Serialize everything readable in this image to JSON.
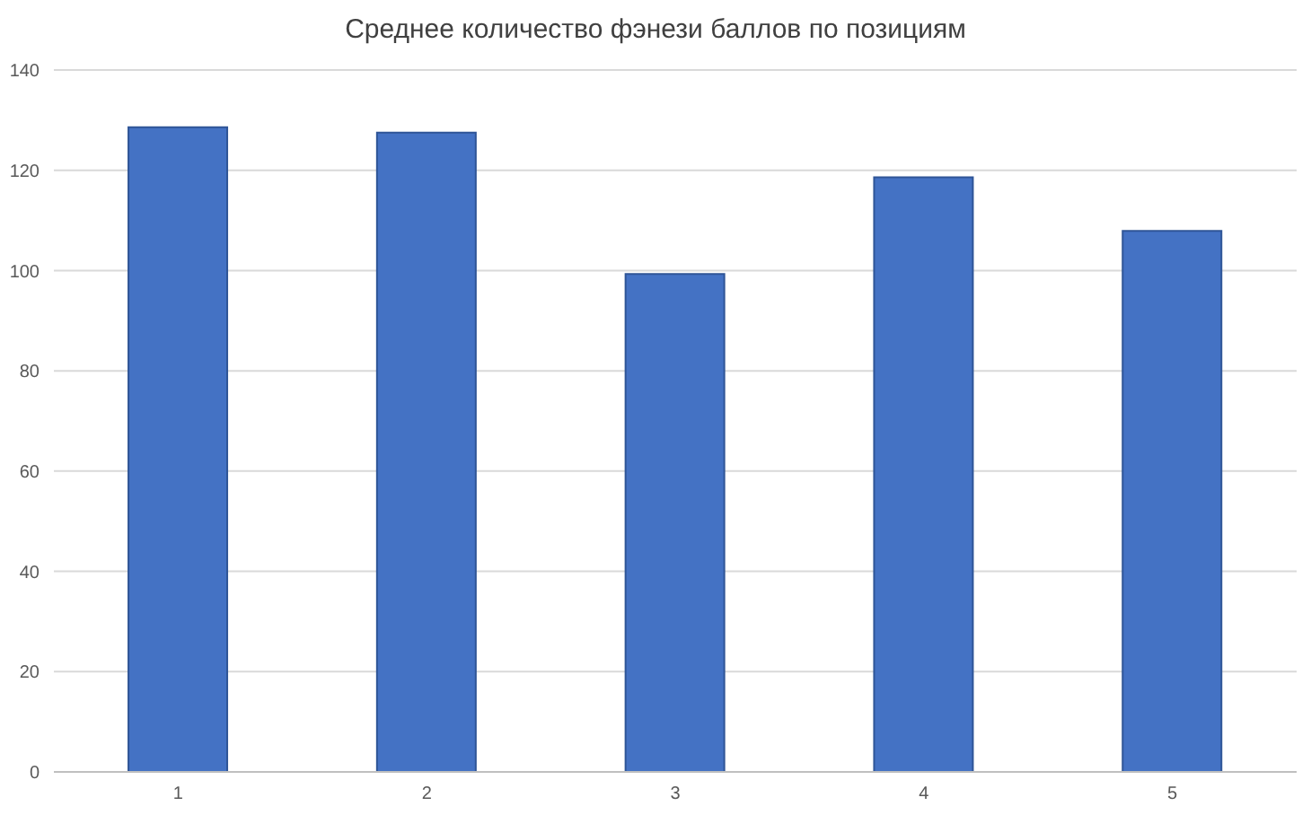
{
  "chart_data": {
    "type": "bar",
    "title": "Среднее количество фэнези баллов по позициям",
    "categories": [
      "1",
      "2",
      "3",
      "4",
      "5"
    ],
    "values": [
      128.6,
      127.5,
      99.3,
      118.6,
      107.9
    ],
    "color": "#4472c4",
    "ylim": [
      0,
      140
    ],
    "yticks": [
      0,
      20,
      40,
      60,
      80,
      100,
      120,
      140
    ],
    "grid": "y"
  }
}
